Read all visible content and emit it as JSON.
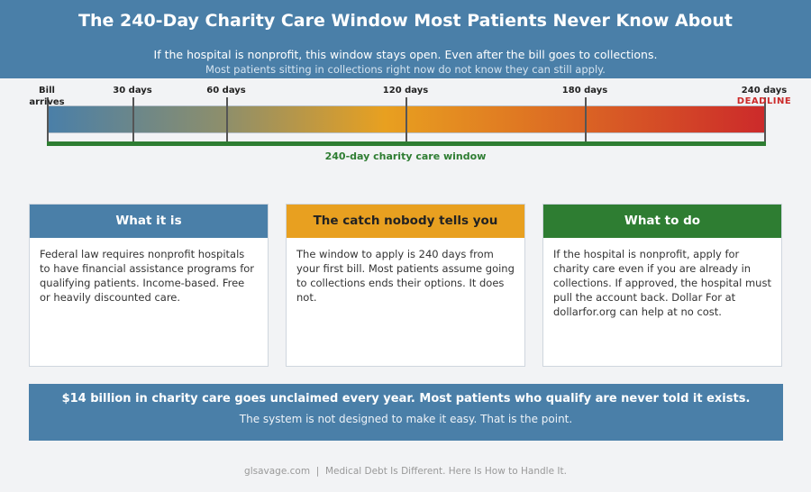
{
  "header": {
    "title": "The 240-Day Charity Care Window Most Patients Never Know About",
    "subtitle": "If the hospital is nonprofit, this window stays open. Even after the bill goes to collections.",
    "note": "Most patients sitting in collections right now do not know they can still apply."
  },
  "timeline": {
    "markers": [
      {
        "day": 0,
        "label": "Bill arrives"
      },
      {
        "day": 30,
        "label": "30 days"
      },
      {
        "day": 60,
        "label": "60 days"
      },
      {
        "day": 120,
        "label": "120 days"
      },
      {
        "day": 180,
        "label": "180 days"
      },
      {
        "day": 240,
        "label": "240 days"
      }
    ],
    "deadline_label": "DEADLINE",
    "window_label": "240-day charity care window",
    "colors": {
      "start": "#4a7fa8",
      "mid": "#e8a020",
      "end": "#cc2a2a",
      "window": "#2e7d32"
    }
  },
  "cards": [
    {
      "title": "What it is",
      "body": "Federal law requires nonprofit hospitals to have financial assistance programs for qualifying patients. Income-based. Free or heavily discounted care.",
      "color": "#4a7fa8"
    },
    {
      "title": "The catch nobody tells you",
      "body": "The window to apply is 240 days from your first bill. Most patients assume going to collections ends their options. It does not.",
      "color": "#e8a020"
    },
    {
      "title": "What to do",
      "body": "If the hospital is nonprofit, apply for charity care even if you are already in collections. If approved, the hospital must pull the account back. Dollar For at dollarfor.org can help at no cost.",
      "color": "#2e7d32"
    }
  ],
  "banner": {
    "headline": "$14 billion in charity care goes unclaimed every year. Most patients who qualify are never told it exists.",
    "subline": "The system is not designed to make it easy. That is the point."
  },
  "footer": "glsavage.com  |  Medical Debt Is Different. Here Is How to Handle It."
}
